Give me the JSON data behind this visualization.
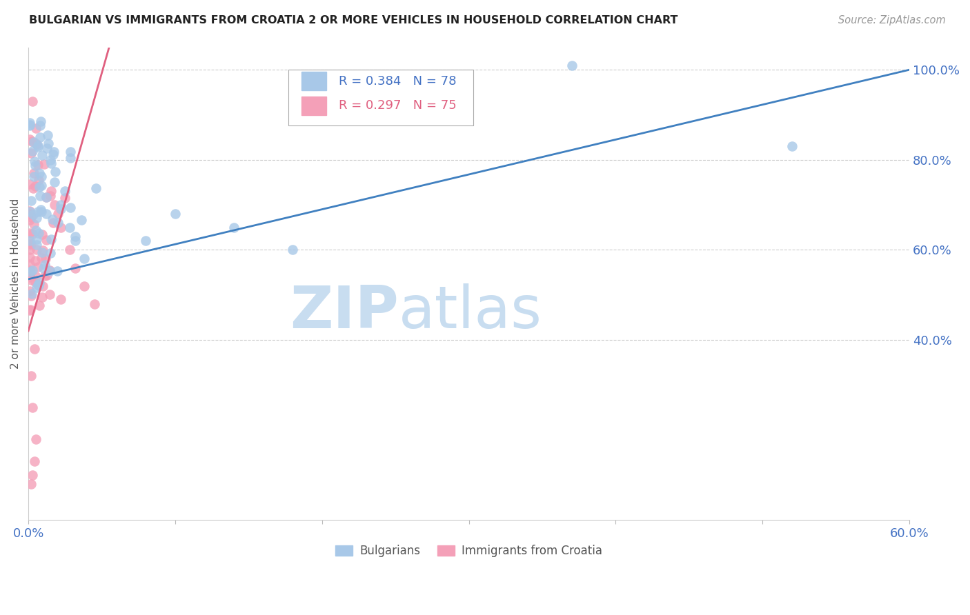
{
  "title": "BULGARIAN VS IMMIGRANTS FROM CROATIA 2 OR MORE VEHICLES IN HOUSEHOLD CORRELATION CHART",
  "source": "Source: ZipAtlas.com",
  "ylabel": "2 or more Vehicles in Household",
  "x_min": 0.0,
  "x_max": 0.6,
  "y_min": 0.0,
  "y_max": 1.05,
  "x_tick_positions": [
    0.0,
    0.1,
    0.2,
    0.3,
    0.4,
    0.5,
    0.6
  ],
  "x_tick_labels": [
    "0.0%",
    "",
    "",
    "",
    "",
    "",
    "60.0%"
  ],
  "y_tick_labels_right": [
    "40.0%",
    "60.0%",
    "80.0%",
    "100.0%"
  ],
  "y_tick_positions_right": [
    0.4,
    0.6,
    0.8,
    1.0
  ],
  "bulgarian_color": "#a8c8e8",
  "croatian_color": "#f4a0b8",
  "bulgarian_line_color": "#4080c0",
  "croatian_line_color": "#e06080",
  "R_bulgarian": 0.384,
  "N_bulgarian": 78,
  "R_croatian": 0.297,
  "N_croatian": 75,
  "legend_labels": [
    "Bulgarians",
    "Immigrants from Croatia"
  ],
  "watermark_zip": "ZIP",
  "watermark_atlas": "atlas",
  "title_color": "#222222",
  "axis_color": "#4472c4",
  "bg_color": "#ffffff",
  "bulg_line_x0": 0.0,
  "bulg_line_y0": 0.535,
  "bulg_line_x1": 0.6,
  "bulg_line_y1": 1.0,
  "croat_line_x0": 0.0,
  "croat_line_y0": 0.42,
  "croat_line_x1": 0.055,
  "croat_line_y1": 1.05
}
